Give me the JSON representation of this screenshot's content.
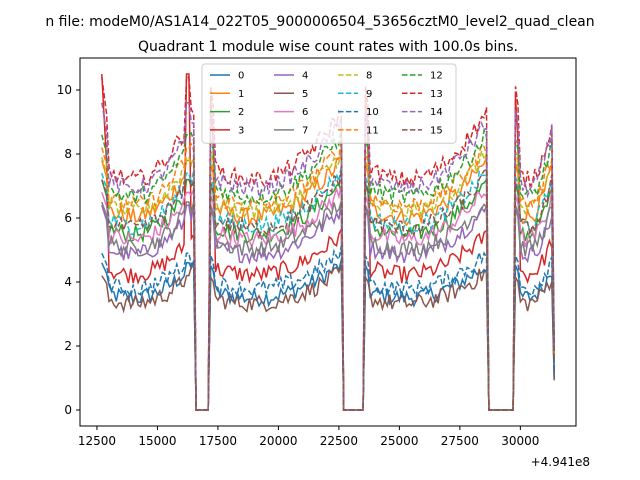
{
  "suptitle": "n file: modeM0/AS1A14_022T05_9000006504_53656cztM0_level2_quad_clean",
  "chart_data": {
    "type": "line",
    "title": "Quadrant 1 module wise count rates with 100.0s bins.",
    "xlabel": "",
    "ylabel": "",
    "x_offset_label": "+4.941e8",
    "xlim": [
      11800,
      32300
    ],
    "ylim": [
      -0.5,
      11.0
    ],
    "x_ticks": [
      12500,
      15000,
      17500,
      20000,
      22500,
      25000,
      27500,
      30000
    ],
    "x_tick_labels": [
      "12500",
      "15000",
      "17500",
      "20000",
      "22500",
      "25000",
      "27500",
      "30000"
    ],
    "y_ticks": [
      0,
      2,
      4,
      6,
      8,
      10
    ],
    "y_tick_labels": [
      "0",
      "2",
      "4",
      "6",
      "8",
      "10"
    ],
    "grid": false,
    "legend_position": "top-center",
    "legend_columns": 4,
    "x_start": 12700,
    "x_step": 100,
    "n_points": 188,
    "gaps": [
      [
        16600,
        17100
      ],
      [
        22700,
        23500
      ],
      [
        28700,
        29700
      ]
    ],
    "series": [
      {
        "name": "0",
        "color": "#1f77b4",
        "dash": "solid",
        "base": 3.9,
        "spike": 4.6
      },
      {
        "name": "1",
        "color": "#ff7f0e",
        "dash": "solid",
        "base": 6.7,
        "spike": 7.8
      },
      {
        "name": "2",
        "color": "#2ca02c",
        "dash": "solid",
        "base": 6.1,
        "spike": 7.2
      },
      {
        "name": "3",
        "color": "#d62728",
        "dash": "solid",
        "base": 4.7,
        "spike": 10.5
      },
      {
        "name": "4",
        "color": "#9467bd",
        "dash": "solid",
        "base": 5.4,
        "spike": 6.4
      },
      {
        "name": "5",
        "color": "#8c564b",
        "dash": "solid",
        "base": 3.7,
        "spike": 4.2
      },
      {
        "name": "6",
        "color": "#e377c2",
        "dash": "solid",
        "base": 5.9,
        "spike": 6.8
      },
      {
        "name": "7",
        "color": "#7f7f7f",
        "dash": "solid",
        "base": 5.6,
        "spike": 6.5
      },
      {
        "name": "8",
        "color": "#bcbd22",
        "dash": "dashed",
        "base": 6.9,
        "spike": 7.9
      },
      {
        "name": "9",
        "color": "#17becf",
        "dash": "dashed",
        "base": 6.4,
        "spike": 7.4
      },
      {
        "name": "10",
        "color": "#1f77b4",
        "dash": "dashed",
        "base": 4.2,
        "spike": 4.9
      },
      {
        "name": "11",
        "color": "#ff7f0e",
        "dash": "dashed",
        "base": 7.1,
        "spike": 8.2
      },
      {
        "name": "12",
        "color": "#2ca02c",
        "dash": "dashed",
        "base": 7.4,
        "spike": 8.6
      },
      {
        "name": "13",
        "color": "#d62728",
        "dash": "dashed",
        "base": 8.0,
        "spike": 10.4
      },
      {
        "name": "14",
        "color": "#9467bd",
        "dash": "dashed",
        "base": 7.7,
        "spike": 9.6
      },
      {
        "name": "15",
        "color": "#8c564b",
        "dash": "dashed",
        "base": 6.3,
        "spike": 7.2
      }
    ]
  }
}
